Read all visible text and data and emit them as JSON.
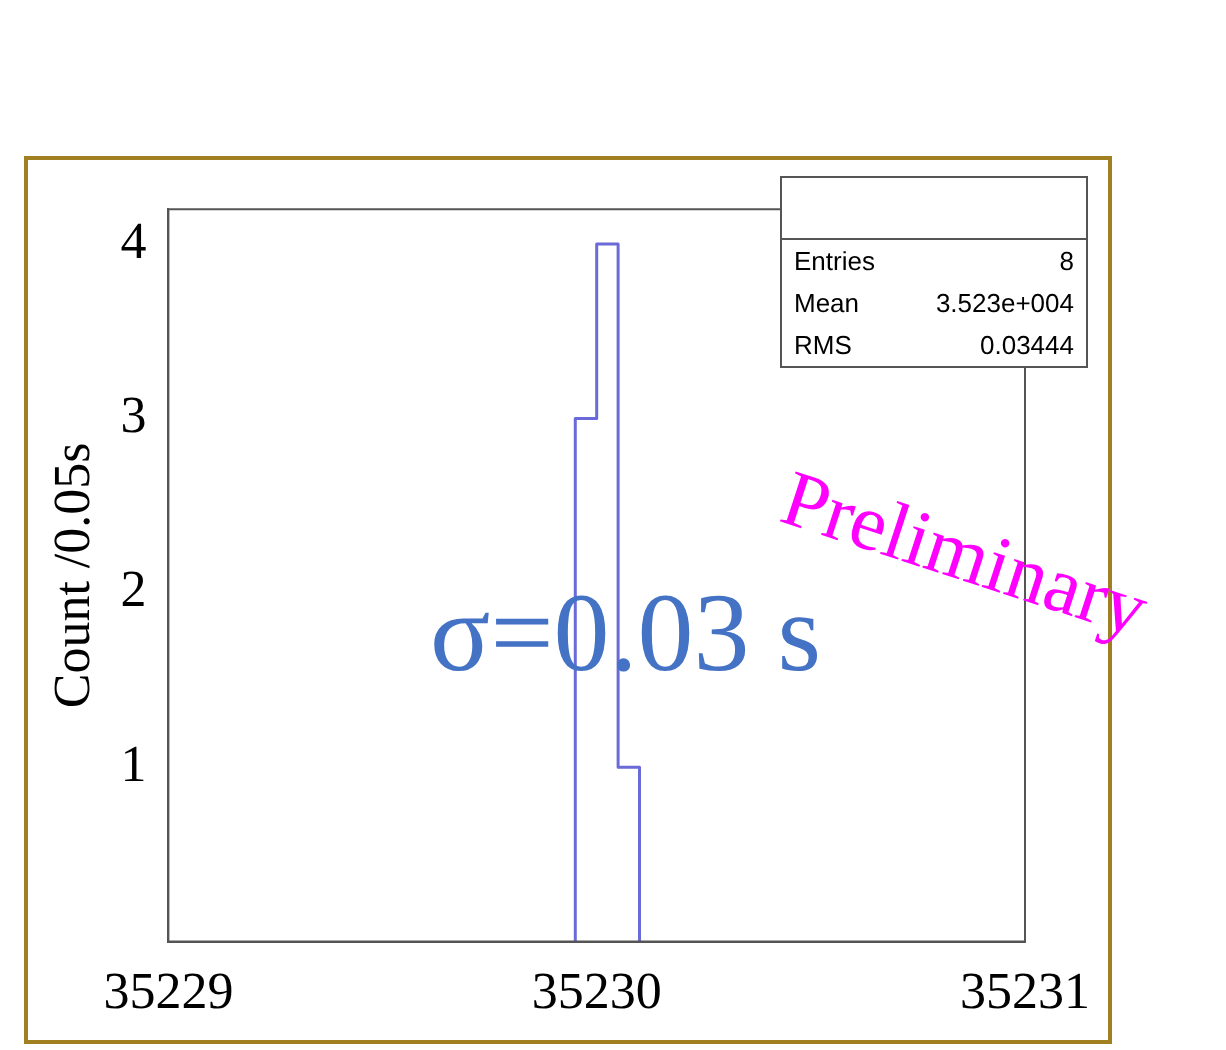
{
  "chart_data": {
    "type": "histogram",
    "ylabel": "Count /0.05s",
    "bins": [
      35229.95,
      35230,
      35230.05,
      35230.1
    ],
    "values": [
      3,
      4,
      1
    ],
    "color": "#6a6ad8",
    "xlim": [
      35229,
      35231
    ],
    "xticks": [
      35229,
      35230,
      35231
    ],
    "ylim": [
      0,
      4.2
    ],
    "yticks": [
      1,
      2,
      3,
      4
    ],
    "grid": false,
    "legend": false,
    "annotations": [
      "Entries 8",
      "Mean 3.523e+004",
      "RMS 0.03444",
      "σ=0.03 s",
      "Preliminary"
    ]
  }
}
